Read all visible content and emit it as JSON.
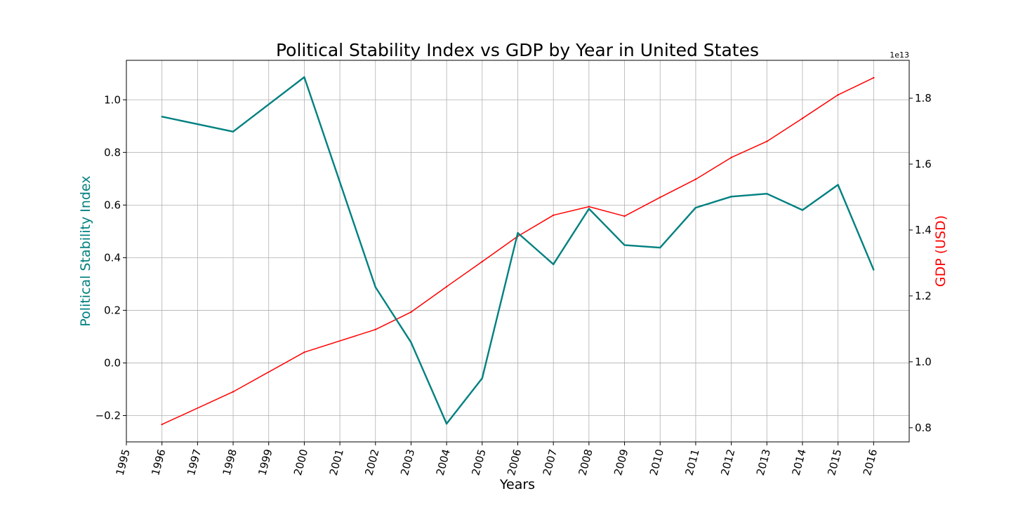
{
  "chart_data": {
    "type": "line",
    "title": "Political Stability Index vs GDP by Year in United States",
    "xlabel": "Years",
    "ylabel_left": "Political Stability Index",
    "ylabel_right": "GDP (USD)",
    "right_axis_offset_label": "1e13",
    "xlim": [
      1995,
      2017
    ],
    "x_ticks": [
      1995,
      1996,
      1997,
      1998,
      1999,
      2000,
      2001,
      2002,
      2003,
      2004,
      2005,
      2006,
      2007,
      2008,
      2009,
      2010,
      2011,
      2012,
      2013,
      2014,
      2015,
      2016
    ],
    "ylim_left": [
      -0.3,
      1.15
    ],
    "y_ticks_left": [
      -0.2,
      0.0,
      0.2,
      0.4,
      0.6,
      0.8,
      1.0
    ],
    "y_tick_labels_left": [
      "−0.2",
      "0.0",
      "0.2",
      "0.4",
      "0.6",
      "0.8",
      "1.0"
    ],
    "ylim_right": [
      7.57,
      19.15
    ],
    "y_ticks_right": [
      0.8,
      1.0,
      1.2,
      1.4,
      1.6,
      1.8
    ],
    "y_tick_labels_right": [
      "0.8",
      "1.0",
      "1.2",
      "1.4",
      "1.6",
      "1.8"
    ],
    "grid": true,
    "colors": {
      "stability": "#008080",
      "gdp": "#ff0000",
      "grid": "#b0b0b0"
    },
    "series": [
      {
        "axis": "left",
        "x": [
          1996,
          1998,
          2000,
          2002,
          2003,
          2004,
          2005,
          2006,
          2007,
          2008,
          2009,
          2010,
          2011,
          2012,
          2013,
          2014,
          2015,
          2016
        ],
        "values": [
          0.936,
          0.879,
          1.086,
          0.288,
          0.078,
          -0.231,
          -0.058,
          0.494,
          0.375,
          0.586,
          0.448,
          0.438,
          0.59,
          0.632,
          0.643,
          0.581,
          0.677,
          0.354
        ]
      },
      {
        "axis": "right",
        "x": [
          1996,
          1998,
          2000,
          2002,
          2003,
          2004,
          2005,
          2006,
          2007,
          2008,
          2009,
          2010,
          2011,
          2012,
          2013,
          2014,
          2015,
          2016
        ],
        "values": [
          8100000000000.0,
          9090000000000.0,
          10290000000000.0,
          10980000000000.0,
          11510000000000.0,
          12280000000000.0,
          13040000000000.0,
          13810000000000.0,
          14450000000000.0,
          14710000000000.0,
          14420000000000.0,
          14990000000000.0,
          15540000000000.0,
          16200000000000.0,
          16690000000000.0,
          17390000000000.0,
          18100000000000.0,
          18620000000000.0
        ]
      }
    ]
  }
}
